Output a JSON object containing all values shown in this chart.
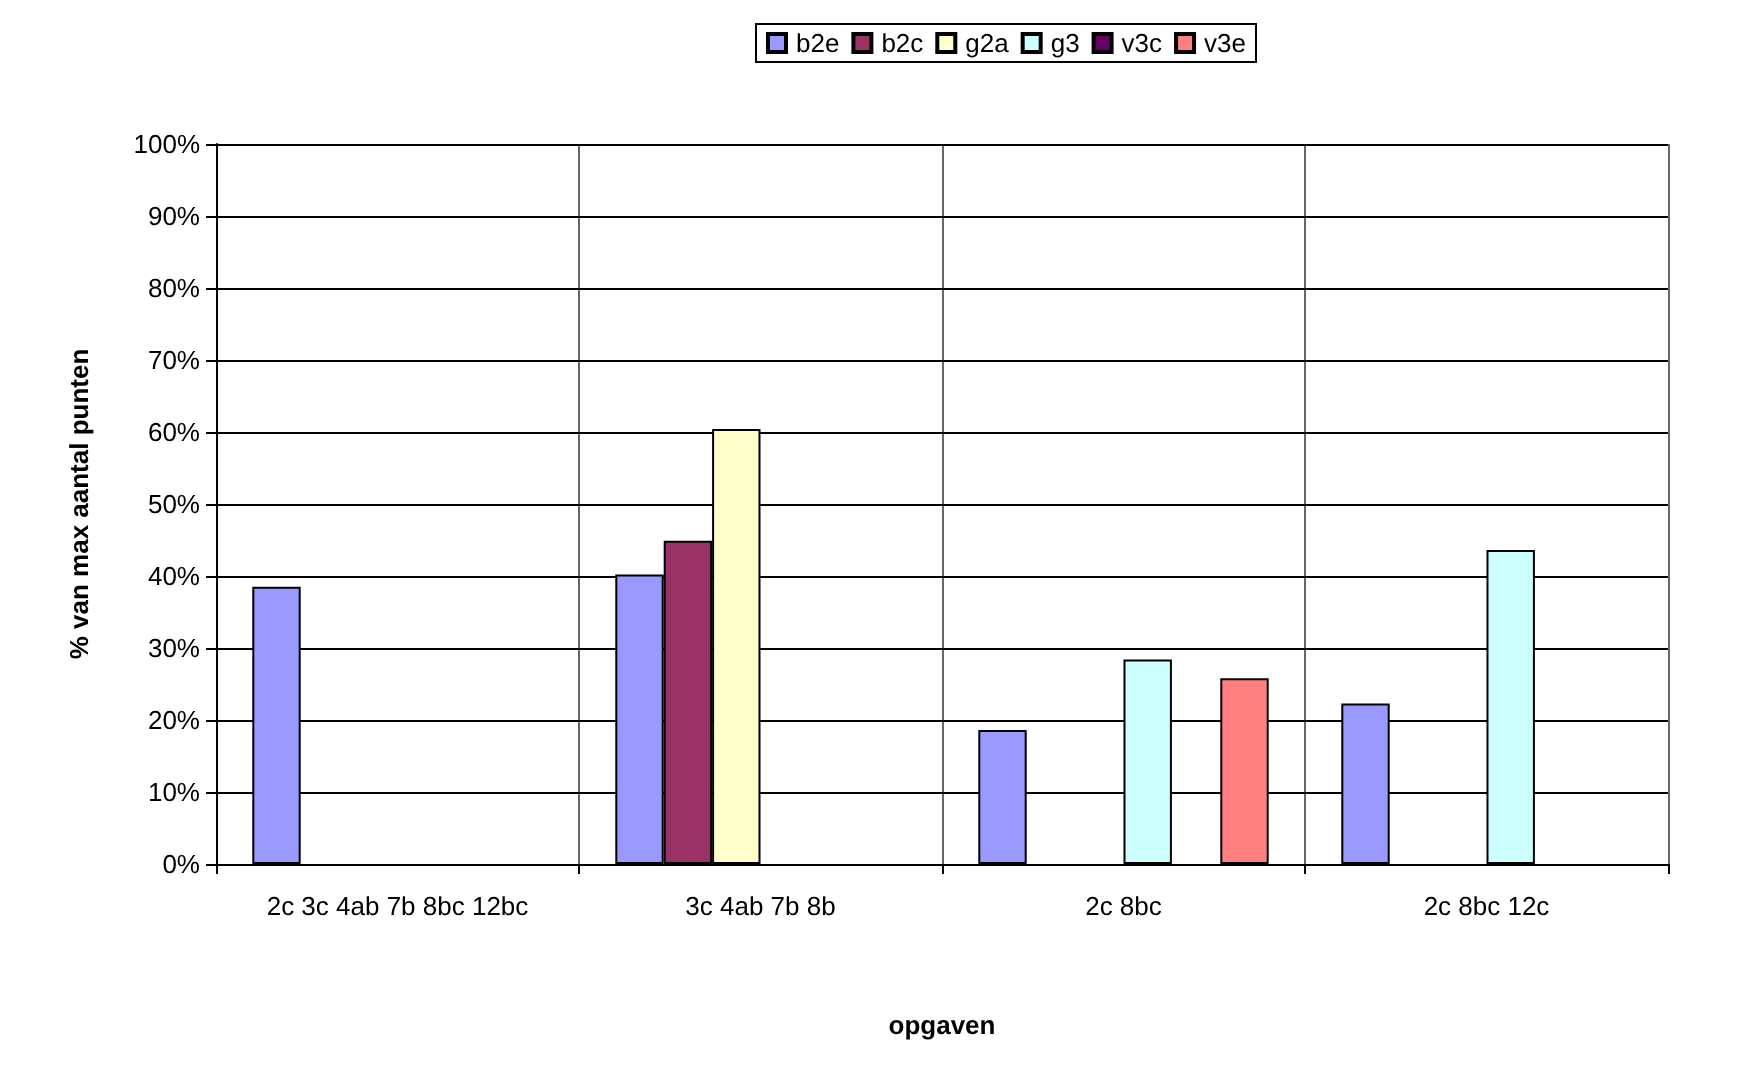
{
  "chart_data": {
    "type": "bar",
    "xlabel": "opgaven",
    "ylabel": "% van max aantal punten",
    "categories": [
      "2c 3c 4ab 7b 8bc 12bc",
      "3c 4ab 7b 8b",
      "2c 8bc",
      "2c 8bc 12c"
    ],
    "series": [
      {
        "name": "b2e",
        "color": "#9999ff",
        "values": [
          38.5,
          40.2,
          18.6,
          22.3
        ]
      },
      {
        "name": "b2c",
        "color": "#993366",
        "values": [
          null,
          44.9,
          null,
          null
        ]
      },
      {
        "name": "g2a",
        "color": "#ffffcc",
        "values": [
          null,
          60.4,
          null,
          null
        ]
      },
      {
        "name": "g3",
        "color": "#ccffff",
        "values": [
          null,
          null,
          28.4,
          43.6
        ]
      },
      {
        "name": "v3c",
        "color": "#660066",
        "values": [
          null,
          null,
          null,
          null
        ]
      },
      {
        "name": "v3e",
        "color": "#ff8080",
        "values": [
          null,
          null,
          25.8,
          null
        ]
      }
    ],
    "ylim": [
      0,
      100
    ],
    "yticks": [
      {
        "value": 0,
        "label": "0%"
      },
      {
        "value": 10,
        "label": "10%"
      },
      {
        "value": 20,
        "label": "20%"
      },
      {
        "value": 30,
        "label": "30%"
      },
      {
        "value": 40,
        "label": "40%"
      },
      {
        "value": 50,
        "label": "50%"
      },
      {
        "value": 60,
        "label": "60%"
      },
      {
        "value": 70,
        "label": "70%"
      },
      {
        "value": 80,
        "label": "80%"
      },
      {
        "value": 90,
        "label": "90%"
      },
      {
        "value": 100,
        "label": "100%"
      }
    ],
    "grid": true,
    "legend": "top"
  }
}
